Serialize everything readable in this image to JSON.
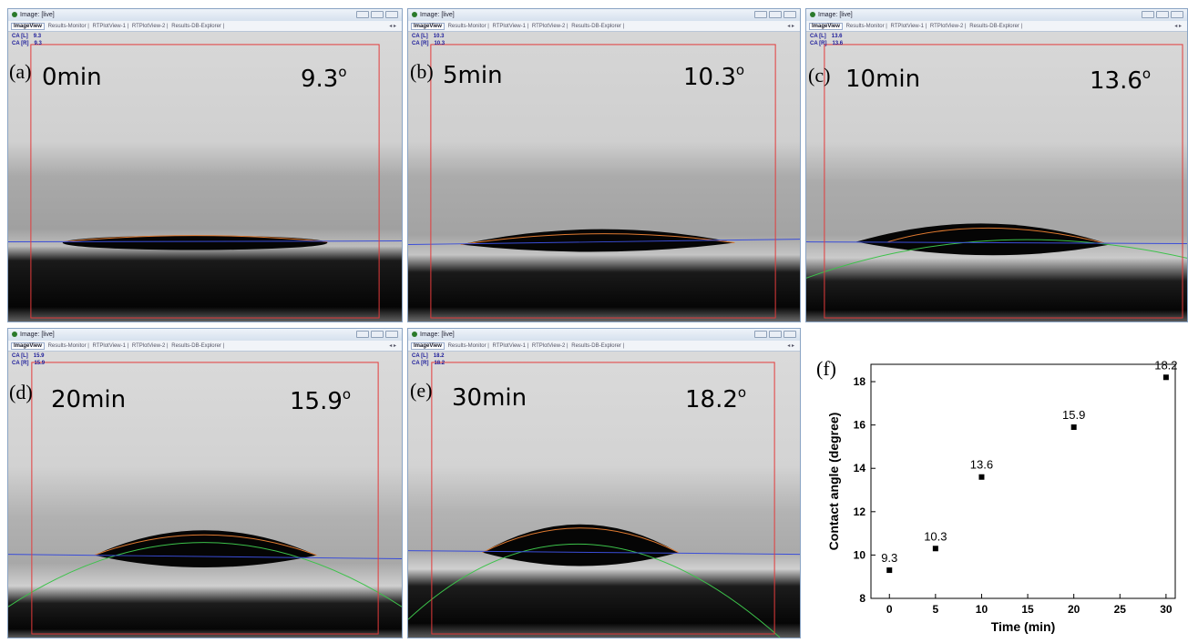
{
  "window": {
    "title": "Image: [live]",
    "tabs": [
      "ImageView",
      "Results-Monitor",
      "RTPlotView-1",
      "RTPlotView-2",
      "Results-DB-Explorer"
    ],
    "tab_arrows": "◂ ▸"
  },
  "panels": [
    {
      "letter": "(a)",
      "time": "0min",
      "angle": "9.3",
      "degree": "o",
      "ca_l_label": "CA [L]",
      "ca_r_label": "CA [R]",
      "ca_l": "9.3",
      "ca_r": "9.3"
    },
    {
      "letter": "(b)",
      "time": "5min",
      "angle": "10.3",
      "degree": "o",
      "ca_l_label": "CA [L]",
      "ca_r_label": "CA [R]",
      "ca_l": "10.3",
      "ca_r": "10.3"
    },
    {
      "letter": "(c)",
      "time": "10min",
      "angle": "13.6",
      "degree": "o",
      "ca_l_label": "CA [L]",
      "ca_r_label": "CA [R]",
      "ca_l": "13.6",
      "ca_r": "13.6"
    },
    {
      "letter": "(d)",
      "time": "20min",
      "angle": "15.9",
      "degree": "o",
      "ca_l_label": "CA [L]",
      "ca_r_label": "CA [R]",
      "ca_l": "15.9",
      "ca_r": "15.9"
    },
    {
      "letter": "(e)",
      "time": "30min",
      "angle": "18.2",
      "degree": "o",
      "ca_l_label": "CA [L]",
      "ca_r_label": "CA [R]",
      "ca_l": "18.2",
      "ca_r": "18.2"
    }
  ],
  "colors": {
    "roi": "#e33b3b",
    "baseline": "#3a4dd8",
    "fit": "#3cc24a"
  },
  "chart_data": {
    "panel_letter": "(f)",
    "type": "scatter",
    "x": [
      0,
      5,
      10,
      20,
      30
    ],
    "y": [
      9.3,
      10.3,
      13.6,
      15.9,
      18.2
    ],
    "data_labels": [
      "9.3",
      "10.3",
      "13.6",
      "15.9",
      "18.2"
    ],
    "xlabel": "Time (min)",
    "ylabel": "Contact angle (degree)",
    "xlim": [
      -2,
      31
    ],
    "ylim": [
      8,
      18.8
    ],
    "xticks": [
      "0",
      "5",
      "10",
      "15",
      "20",
      "25",
      "30"
    ],
    "yticks": [
      "8",
      "10",
      "12",
      "14",
      "16",
      "18"
    ],
    "grid": false,
    "legend": "none"
  }
}
